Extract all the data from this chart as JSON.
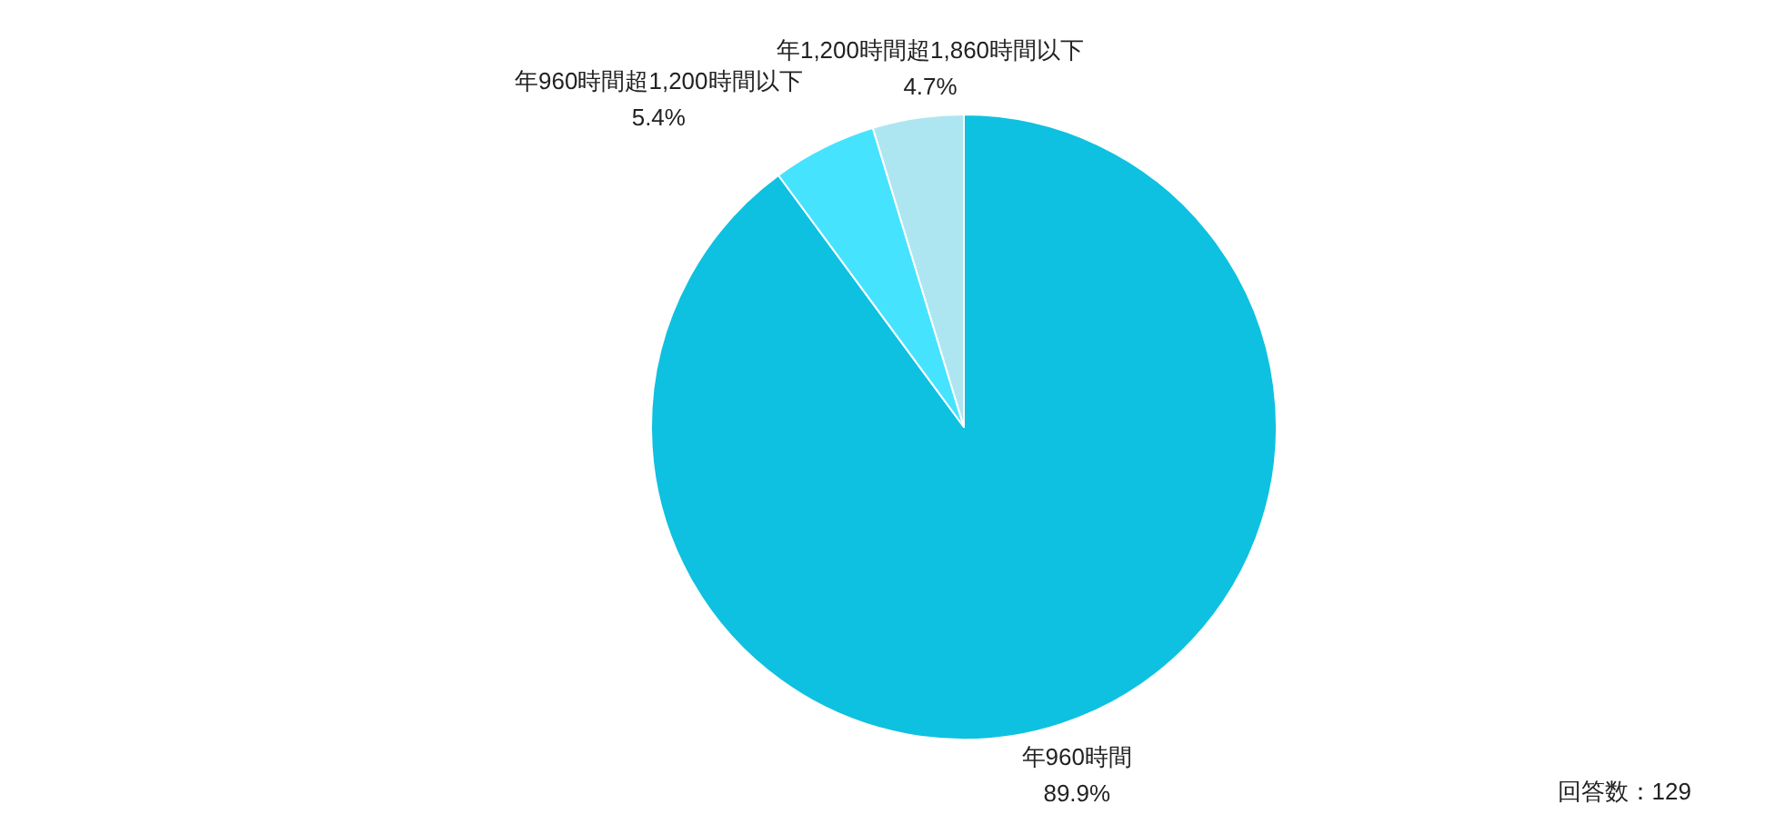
{
  "chart_data": {
    "type": "pie",
    "categories": [
      "年960時間",
      "年960時間超1,200時間以下",
      "年1,200時間超1,860時間以下"
    ],
    "values": [
      89.9,
      5.4,
      4.7
    ],
    "colors": [
      "#0ec1e0",
      "#46e3ff",
      "#ade6f0"
    ],
    "value_labels": [
      "89.9%",
      "5.4%",
      "4.7%"
    ],
    "annotations": [
      "回答数：129"
    ]
  }
}
